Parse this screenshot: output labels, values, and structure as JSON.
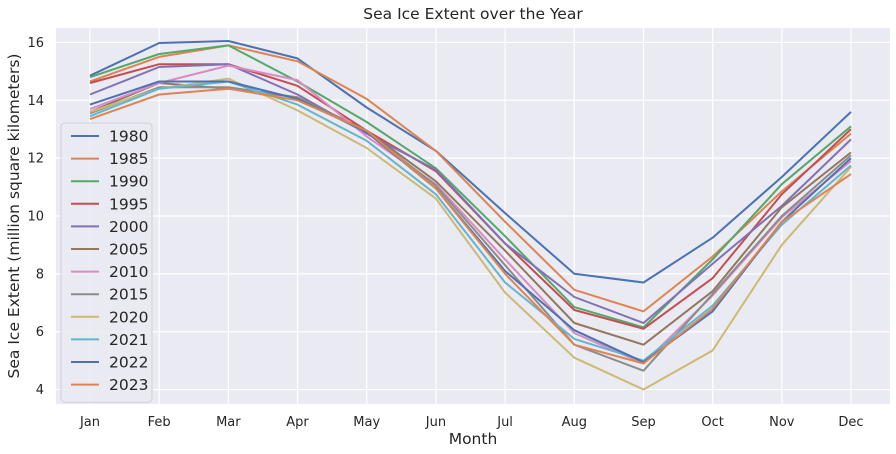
{
  "chart_data": {
    "type": "line",
    "title": "Sea Ice Extent over the Year",
    "xlabel": "Month",
    "ylabel": "Sea Ice Extent (million square kilometers)",
    "categories": [
      "Jan",
      "Feb",
      "Mar",
      "Apr",
      "May",
      "Jun",
      "Jul",
      "Aug",
      "Sep",
      "Oct",
      "Nov",
      "Dec"
    ],
    "ylim": [
      3.5,
      16.5
    ],
    "yticks": [
      4,
      6,
      8,
      10,
      12,
      14,
      16
    ],
    "grid": true,
    "legend_position": "left",
    "series": [
      {
        "name": "1980",
        "color": "#4c72b0",
        "values": [
          14.85,
          15.98,
          16.05,
          15.45,
          13.75,
          12.25,
          10.1,
          8.0,
          7.7,
          9.25,
          11.35,
          13.6
        ]
      },
      {
        "name": "1985",
        "color": "#dd8452",
        "values": [
          14.65,
          15.5,
          15.9,
          15.35,
          14.05,
          12.25,
          9.8,
          7.45,
          6.7,
          8.6,
          10.85,
          12.85
        ]
      },
      {
        "name": "1990",
        "color": "#55a868",
        "values": [
          14.8,
          15.6,
          15.9,
          14.65,
          13.25,
          11.65,
          9.3,
          6.85,
          6.15,
          8.5,
          11.1,
          13.1
        ]
      },
      {
        "name": "1995",
        "color": "#c44e52",
        "values": [
          14.6,
          15.25,
          15.25,
          14.5,
          12.95,
          11.55,
          9.05,
          6.75,
          6.1,
          7.85,
          10.75,
          13.0
        ]
      },
      {
        "name": "2000",
        "color": "#8172b3",
        "values": [
          14.2,
          15.15,
          15.25,
          14.2,
          12.85,
          11.6,
          9.05,
          7.2,
          6.3,
          8.35,
          10.35,
          12.65
        ]
      },
      {
        "name": "2005",
        "color": "#937860",
        "values": [
          13.6,
          14.6,
          14.4,
          14.1,
          12.95,
          11.2,
          8.8,
          6.3,
          5.55,
          7.4,
          10.3,
          12.2
        ]
      },
      {
        "name": "2010",
        "color": "#da8bc3",
        "values": [
          13.7,
          14.6,
          15.2,
          14.7,
          12.75,
          11.1,
          8.5,
          5.95,
          4.9,
          7.25,
          9.95,
          11.9
        ]
      },
      {
        "name": "2015",
        "color": "#8c8c8c",
        "values": [
          13.55,
          14.45,
          14.45,
          14.1,
          12.9,
          11.05,
          8.3,
          5.55,
          4.65,
          7.3,
          10.0,
          12.1
        ]
      },
      {
        "name": "2020",
        "color": "#ccb974",
        "values": [
          13.6,
          14.4,
          14.75,
          13.65,
          12.35,
          10.6,
          7.35,
          5.1,
          4.0,
          5.35,
          9.0,
          11.7
        ]
      },
      {
        "name": "2021",
        "color": "#64b5cd",
        "values": [
          13.45,
          14.4,
          14.65,
          13.85,
          12.6,
          10.75,
          7.7,
          5.75,
          5.0,
          6.9,
          9.7,
          11.75
        ]
      },
      {
        "name": "2022",
        "color": "#4c72b0",
        "values": [
          13.85,
          14.65,
          14.65,
          14.05,
          12.9,
          10.95,
          8.1,
          6.05,
          4.95,
          6.7,
          9.8,
          12.0
        ]
      },
      {
        "name": "2023",
        "color": "#dd8452",
        "values": [
          13.35,
          14.2,
          14.4,
          14.0,
          12.95,
          10.95,
          8.0,
          5.55,
          4.9,
          6.8,
          9.8,
          11.45
        ]
      }
    ]
  }
}
